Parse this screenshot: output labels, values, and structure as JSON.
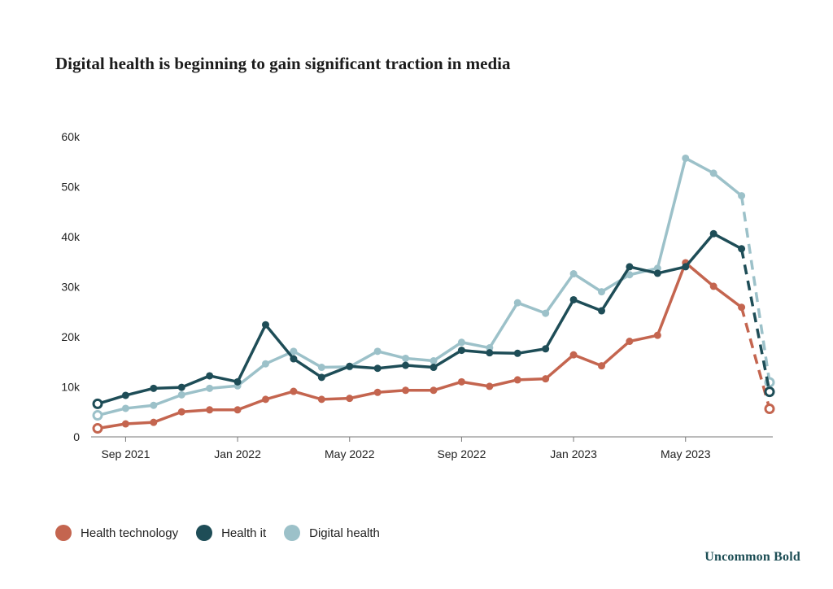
{
  "brand": "Uncommon Bold",
  "colors": {
    "health_technology": "#c4654f",
    "health_it": "#1e4d57",
    "digital_health": "#9cc1c9"
  },
  "chart_data": {
    "type": "line",
    "title": "Digital health is beginning to gain significant traction in media",
    "xlabel": "",
    "ylabel": "",
    "ylim": [
      0,
      60000
    ],
    "y_ticks": [
      {
        "value": 0,
        "label": "0"
      },
      {
        "value": 10000,
        "label": "10k"
      },
      {
        "value": 20000,
        "label": "20k"
      },
      {
        "value": 30000,
        "label": "30k"
      },
      {
        "value": 40000,
        "label": "40k"
      },
      {
        "value": 50000,
        "label": "50k"
      },
      {
        "value": 60000,
        "label": "60k"
      }
    ],
    "x_ticks": [
      {
        "index": 1,
        "label": "Sep 2021"
      },
      {
        "index": 5,
        "label": "Jan 2022"
      },
      {
        "index": 9,
        "label": "May 2022"
      },
      {
        "index": 13,
        "label": "Sep 2022"
      },
      {
        "index": 17,
        "label": "Jan 2023"
      },
      {
        "index": 21,
        "label": "May 2023"
      }
    ],
    "x_count": 25,
    "dashed_last_segment": true,
    "series": [
      {
        "key": "health_technology",
        "name": "Health technology",
        "values": [
          1700,
          2600,
          2900,
          5000,
          5400,
          5400,
          7500,
          9100,
          7500,
          7700,
          8900,
          9300,
          9300,
          11000,
          10100,
          11400,
          11600,
          16400,
          14200,
          19100,
          20300,
          34800,
          30100,
          25900,
          5600
        ]
      },
      {
        "key": "health_it",
        "name": "Health it",
        "values": [
          6600,
          8300,
          9700,
          9900,
          12200,
          11000,
          22400,
          15600,
          11900,
          14100,
          13700,
          14300,
          13900,
          17300,
          16800,
          16700,
          17600,
          27400,
          25200,
          34000,
          32700,
          34000,
          40600,
          37600,
          9000
        ]
      },
      {
        "key": "digital_health",
        "name": "Digital health",
        "values": [
          4300,
          5700,
          6300,
          8400,
          9700,
          10200,
          14600,
          17100,
          13900,
          14000,
          17100,
          15700,
          15200,
          18900,
          17800,
          26800,
          24700,
          32600,
          29000,
          32400,
          33700,
          55700,
          52700,
          48200,
          10900
        ]
      }
    ]
  }
}
